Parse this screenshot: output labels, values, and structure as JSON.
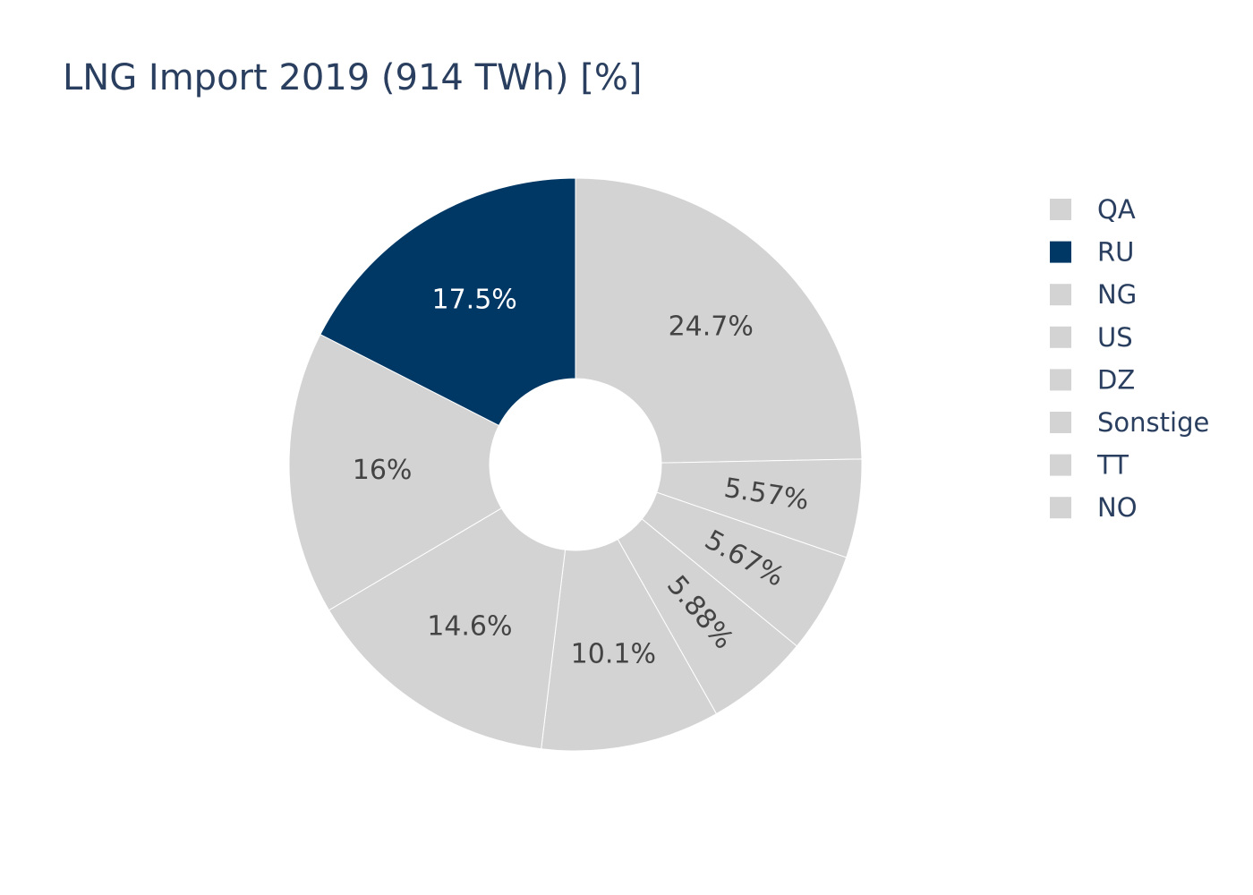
{
  "chart_data": {
    "type": "pie",
    "hole": true,
    "title": "LNG Import 2019 (914 TWh) [%]",
    "unit": "%",
    "direction": "clockwise",
    "start": "top",
    "slices": [
      {
        "label": "QA",
        "value": 24.7,
        "text": "24.7%",
        "color": "#d3d3d3",
        "text_color": "#444444"
      },
      {
        "label": "NO",
        "value": 5.57,
        "text": "5.57%",
        "color": "#d3d3d3",
        "text_color": "#444444"
      },
      {
        "label": "TT",
        "value": 5.67,
        "text": "5.67%",
        "color": "#d3d3d3",
        "text_color": "#444444"
      },
      {
        "label": "Sonstige",
        "value": 5.88,
        "text": "5.88%",
        "color": "#d3d3d3",
        "text_color": "#444444"
      },
      {
        "label": "DZ",
        "value": 10.1,
        "text": "10.1%",
        "color": "#d3d3d3",
        "text_color": "#444444"
      },
      {
        "label": "US",
        "value": 14.6,
        "text": "14.6%",
        "color": "#d3d3d3",
        "text_color": "#444444"
      },
      {
        "label": "NG",
        "value": 16,
        "text": "16%",
        "color": "#d3d3d3",
        "text_color": "#444444"
      },
      {
        "label": "RU",
        "value": 17.5,
        "text": "17.5%",
        "color": "#003865",
        "text_color": "#ffffff"
      }
    ],
    "legend": {
      "placement": "right",
      "items": [
        {
          "label": "QA",
          "color": "#d3d3d3"
        },
        {
          "label": "RU",
          "color": "#003865"
        },
        {
          "label": "NG",
          "color": "#d3d3d3"
        },
        {
          "label": "US",
          "color": "#d3d3d3"
        },
        {
          "label": "DZ",
          "color": "#d3d3d3"
        },
        {
          "label": "Sonstige",
          "color": "#d3d3d3"
        },
        {
          "label": "TT",
          "color": "#d3d3d3"
        },
        {
          "label": "NO",
          "color": "#d3d3d3"
        }
      ]
    }
  }
}
